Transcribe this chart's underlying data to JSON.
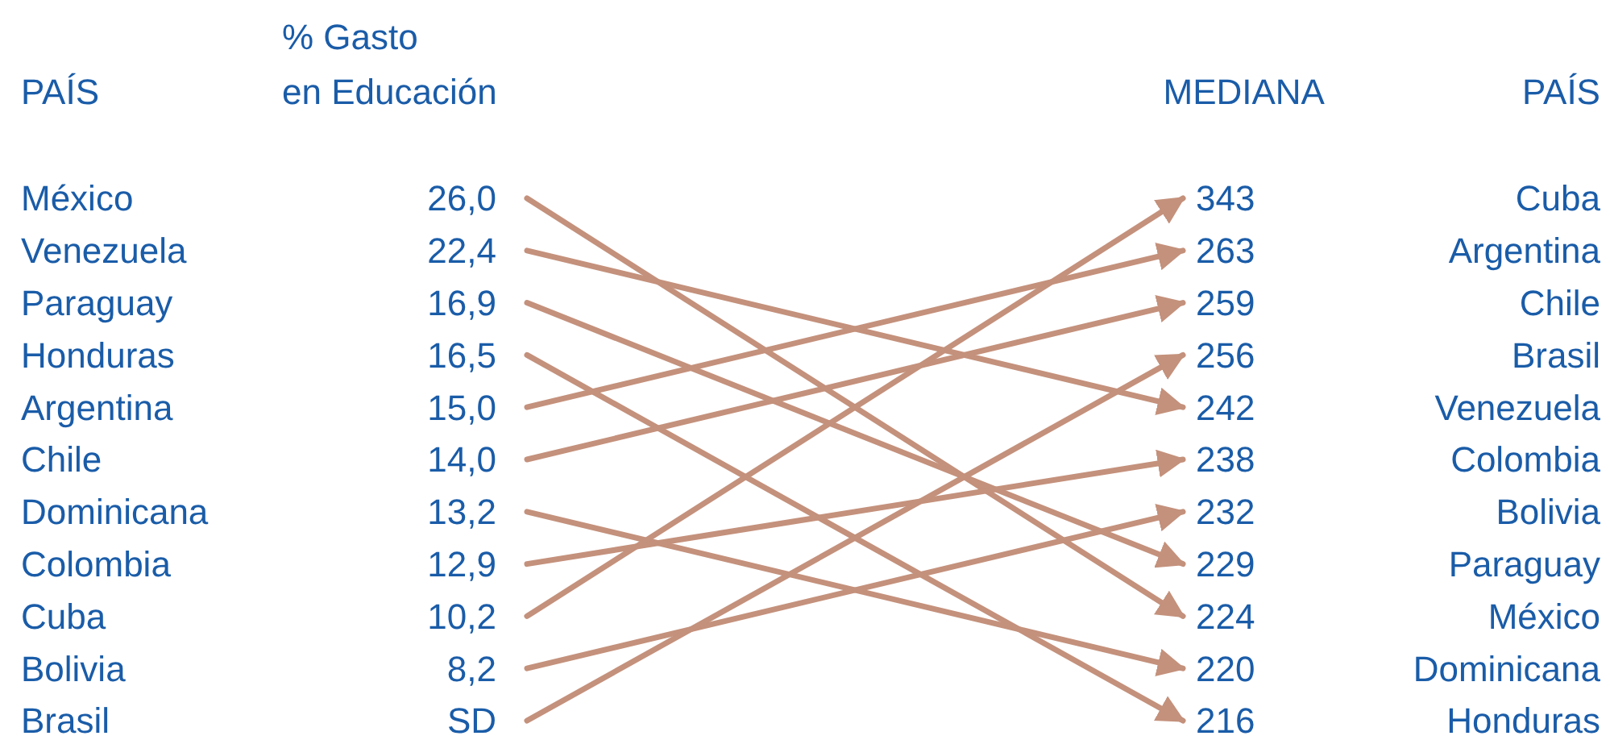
{
  "chart_data": {
    "type": "other",
    "color": "#c4917c",
    "categories": [
      "México",
      "Venezuela",
      "Paraguay",
      "Honduras",
      "Argentina",
      "Chile",
      "Dominicana",
      "Colombia",
      "Cuba",
      "Bolivia",
      "Brasil"
    ],
    "y2_categories": [
      "Cuba",
      "Argentina",
      "Chile",
      "Brasil",
      "Venezuela",
      "Colombia",
      "Bolivia",
      "Paraguay",
      "México",
      "Dominicana",
      "Honduras"
    ],
    "series": [
      {
        "values": [
          26.0,
          22.4,
          16.9,
          16.5,
          15.0,
          14.0,
          13.2,
          12.9,
          10.2,
          8.2,
          null
        ],
        "value_labels": [
          "26,0",
          "22,4",
          "16,9",
          "16,5",
          "15,0",
          "14,0",
          "13,2",
          "12,9",
          "10,2",
          "8,2",
          "SD"
        ]
      },
      {
        "axis": "y2",
        "values": [
          343,
          263,
          259,
          256,
          242,
          238,
          232,
          229,
          224,
          220,
          216
        ],
        "value_labels": [
          "343",
          "263",
          "259",
          "256",
          "242",
          "238",
          "232",
          "229",
          "224",
          "220",
          "216"
        ]
      }
    ],
    "annotations": [
      "PAÍS",
      "% Gasto\nen Educación",
      "MEDIANA",
      "PAÍS"
    ]
  }
}
